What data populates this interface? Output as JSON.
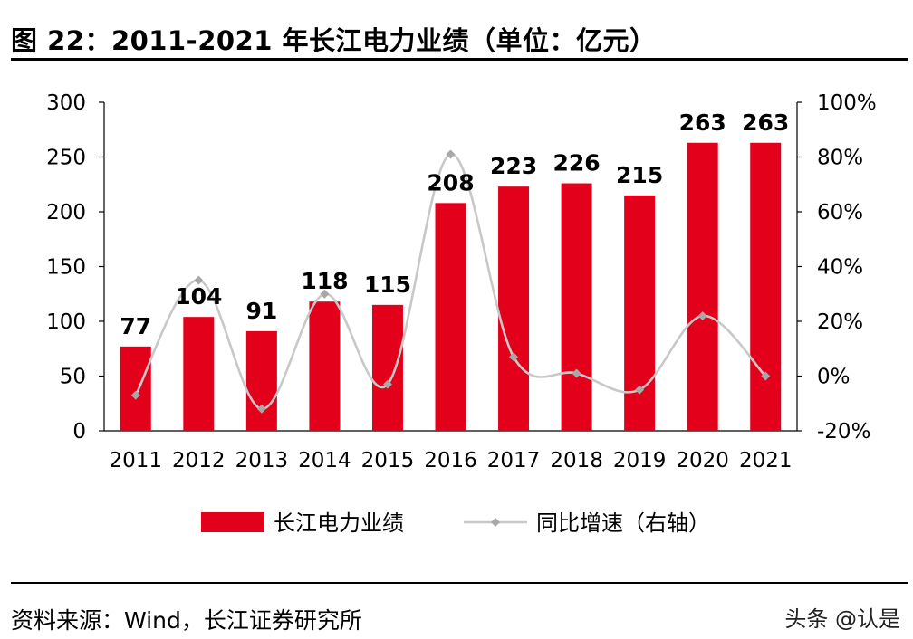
{
  "title": "图 22：2011-2021 年长江电力业绩（单位：亿元）",
  "source": "资料来源：Wind，长江证券研究所",
  "watermark": "头条 @认是",
  "colors": {
    "bar": "#e2001a",
    "line": "#c8c8c8",
    "marker": "#a8a8a8"
  },
  "chart_data": {
    "type": "bar",
    "categories": [
      "2011",
      "2012",
      "2013",
      "2014",
      "2015",
      "2016",
      "2017",
      "2018",
      "2019",
      "2020",
      "2021"
    ],
    "series": [
      {
        "name": "长江电力业绩",
        "type": "bar",
        "axis": "left",
        "values": [
          77,
          104,
          91,
          118,
          115,
          208,
          223,
          226,
          215,
          263,
          263
        ]
      },
      {
        "name": "同比增速（右轴）",
        "type": "line",
        "axis": "right",
        "values": [
          -7,
          35,
          -12,
          30,
          -3,
          81,
          7,
          1,
          -5,
          22,
          0
        ]
      }
    ],
    "data_labels": [
      "77",
      "104",
      "91",
      "118",
      "115",
      "208",
      "223",
      "226",
      "215",
      "263",
      "263"
    ],
    "y_left": {
      "min": 0,
      "max": 300,
      "ticks": [
        "0",
        "50",
        "100",
        "150",
        "200",
        "250",
        "300"
      ]
    },
    "y_right": {
      "min": -20,
      "max": 100,
      "ticks": [
        "-20%",
        "0%",
        "20%",
        "40%",
        "60%",
        "80%",
        "100%"
      ]
    },
    "legend_position": "bottom",
    "grid": false
  }
}
